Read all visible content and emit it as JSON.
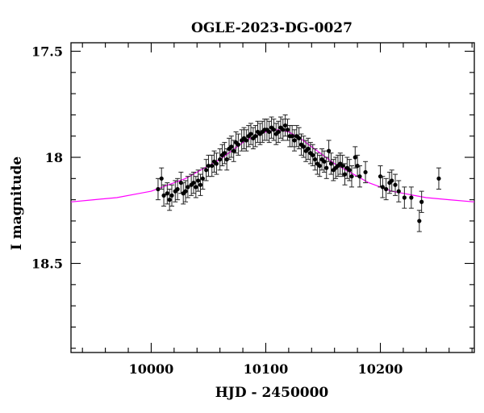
{
  "chart_data": {
    "type": "scatter",
    "title": "OGLE-2023-DG-0027",
    "xlabel": "HJD - 2450000",
    "ylabel": "I magnitude",
    "xlim": [
      9930,
      10282
    ],
    "ylim": [
      18.92,
      17.46
    ],
    "y_inverted": true,
    "grid": false,
    "x_major_ticks": [
      10000,
      10100,
      10200
    ],
    "x_tick_labels": [
      "10000",
      "10100",
      "10200"
    ],
    "x_minor_step": 20,
    "y_major_ticks": [
      17.5,
      18,
      18.5
    ],
    "y_tick_labels": [
      "17.5",
      "18",
      "18.5"
    ],
    "y_minor_step": 0.1,
    "colors": {
      "data": "#000000",
      "model": "#ff00ff"
    },
    "series": [
      {
        "type": "scatter_errorbars",
        "x": [
          10006,
          10009,
          10011,
          10014,
          10016,
          10018,
          10021,
          10023,
          10026,
          10028,
          10030,
          10032,
          10035,
          10037,
          10039,
          10041,
          10043,
          10045,
          10048,
          10050,
          10053,
          10055,
          10057,
          10060,
          10062,
          10064,
          10066,
          10068,
          10070,
          10072,
          10074,
          10076,
          10079,
          10081,
          10083,
          10085,
          10087,
          10089,
          10091,
          10093,
          10095,
          10097,
          10099,
          10101,
          10103,
          10105,
          10107,
          10109,
          10111,
          10113,
          10115,
          10117,
          10119,
          10121,
          10123,
          10125,
          10127,
          10129,
          10131,
          10133,
          10135,
          10137,
          10139,
          10141,
          10143,
          10145,
          10147,
          10149,
          10151,
          10153,
          10155,
          10157,
          10159,
          10161,
          10163,
          10165,
          10167,
          10169,
          10171,
          10173,
          10175,
          10178,
          10180,
          10182,
          10187,
          10200,
          10202,
          10205,
          10208,
          10210,
          10213,
          10216,
          10221,
          10227,
          10234,
          10236,
          10251
        ],
        "y": [
          18.15,
          18.1,
          18.18,
          18.17,
          18.2,
          18.18,
          18.16,
          18.15,
          18.12,
          18.17,
          18.16,
          18.14,
          18.13,
          18.12,
          18.14,
          18.11,
          18.13,
          18.1,
          18.06,
          18.04,
          18.04,
          18.02,
          18.03,
          18.01,
          17.99,
          17.98,
          18.01,
          17.96,
          17.95,
          17.97,
          17.93,
          17.94,
          17.92,
          17.91,
          17.92,
          17.9,
          17.89,
          17.91,
          17.9,
          17.88,
          17.89,
          17.88,
          17.87,
          17.87,
          17.88,
          17.86,
          17.87,
          17.89,
          17.88,
          17.86,
          17.87,
          17.85,
          17.87,
          17.9,
          17.9,
          17.92,
          17.9,
          17.91,
          17.94,
          17.95,
          17.97,
          17.96,
          17.98,
          17.99,
          18.01,
          18.03,
          18.04,
          18.01,
          18.02,
          18.05,
          17.97,
          18.03,
          18.06,
          18.05,
          18.04,
          18.03,
          18.04,
          18.08,
          18.05,
          18.06,
          18.09,
          18.0,
          18.04,
          18.09,
          18.07,
          18.09,
          18.14,
          18.15,
          18.12,
          18.11,
          18.13,
          18.16,
          18.19,
          18.19,
          18.3,
          18.21,
          18.1
        ],
        "err": [
          0.05,
          0.05,
          0.05,
          0.05,
          0.05,
          0.05,
          0.05,
          0.05,
          0.05,
          0.05,
          0.05,
          0.05,
          0.05,
          0.05,
          0.05,
          0.05,
          0.05,
          0.05,
          0.05,
          0.05,
          0.05,
          0.05,
          0.05,
          0.05,
          0.05,
          0.05,
          0.05,
          0.05,
          0.05,
          0.05,
          0.05,
          0.05,
          0.05,
          0.05,
          0.05,
          0.05,
          0.05,
          0.05,
          0.05,
          0.05,
          0.05,
          0.05,
          0.05,
          0.05,
          0.05,
          0.05,
          0.05,
          0.05,
          0.05,
          0.05,
          0.05,
          0.05,
          0.05,
          0.05,
          0.05,
          0.05,
          0.05,
          0.05,
          0.05,
          0.05,
          0.05,
          0.05,
          0.05,
          0.05,
          0.05,
          0.05,
          0.05,
          0.05,
          0.05,
          0.05,
          0.05,
          0.05,
          0.05,
          0.05,
          0.05,
          0.05,
          0.05,
          0.05,
          0.05,
          0.05,
          0.05,
          0.05,
          0.05,
          0.05,
          0.05,
          0.05,
          0.05,
          0.05,
          0.05,
          0.05,
          0.05,
          0.05,
          0.05,
          0.05,
          0.05,
          0.05,
          0.05
        ]
      },
      {
        "type": "line",
        "x": [
          9930,
          9950,
          9970,
          9990,
          10000,
          10010,
          10020,
          10030,
          10040,
          10050,
          10060,
          10070,
          10080,
          10090,
          10100,
          10110,
          10120,
          10130,
          10140,
          10150,
          10160,
          10170,
          10180,
          10190,
          10200,
          10210,
          10220,
          10240,
          10260,
          10282
        ],
        "y": [
          18.21,
          18.2,
          18.19,
          18.17,
          18.16,
          18.14,
          18.12,
          18.1,
          18.07,
          18.04,
          18.01,
          17.97,
          17.93,
          17.9,
          17.88,
          17.87,
          17.88,
          17.91,
          17.95,
          17.99,
          18.03,
          18.06,
          18.09,
          18.12,
          18.14,
          18.16,
          18.17,
          18.19,
          18.2,
          18.21
        ]
      }
    ]
  }
}
